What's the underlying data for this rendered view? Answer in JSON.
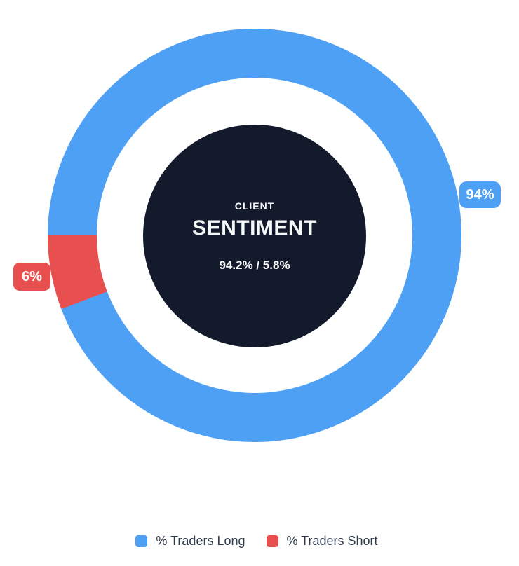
{
  "chart_data": {
    "type": "pie",
    "subtype": "donut",
    "title": "CLIENT SENTIMENT",
    "categories": [
      "% Traders Long",
      "% Traders Short"
    ],
    "values": [
      94.2,
      5.8
    ],
    "colors": [
      "#4da0f4",
      "#e8504f"
    ],
    "legend_position": "bottom",
    "annotations": [
      {
        "label": "94%",
        "series": "% Traders Long"
      },
      {
        "label": "6%",
        "series": "% Traders Short"
      }
    ]
  },
  "center": {
    "line1": "CLIENT",
    "line2": "SENTIMENT",
    "line3": "94.2% / 5.8%"
  },
  "badges": {
    "long": "94%",
    "short": "6%"
  },
  "legend": {
    "items": [
      {
        "label": "% Traders Long",
        "color": "#4da0f4"
      },
      {
        "label": "% Traders Short",
        "color": "#e8504f"
      }
    ]
  },
  "colors": {
    "long_blue": "#4da0f4",
    "short_red": "#e8504f",
    "center_disc": "#131a2c",
    "legend_text": "#2f3b4c",
    "background": "#ffffff"
  }
}
